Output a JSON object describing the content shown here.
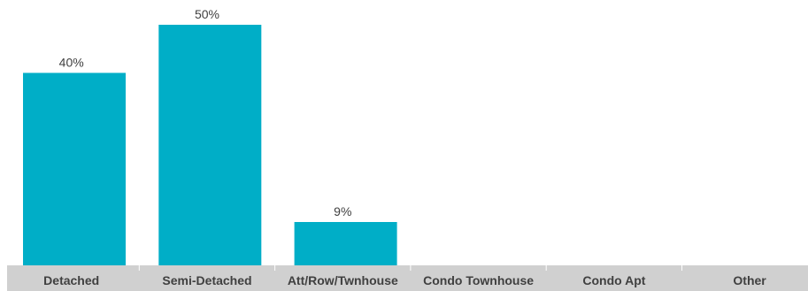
{
  "chart_data": {
    "type": "bar",
    "categories": [
      "Detached",
      "Semi-Detached",
      "Att/Row/Twnhouse",
      "Condo Townhouse",
      "Condo Apt",
      "Other"
    ],
    "values": [
      40,
      50,
      9,
      0,
      0,
      0
    ],
    "data_labels": [
      "40%",
      "50%",
      "9%",
      "",
      "",
      ""
    ],
    "ylim": [
      0,
      50
    ],
    "grid": false,
    "legend": "none",
    "colors": {
      "bar": "#00aec7",
      "axis_band": "#d0d0d0",
      "tick_line": "#ffffff",
      "text": "#404040"
    }
  }
}
